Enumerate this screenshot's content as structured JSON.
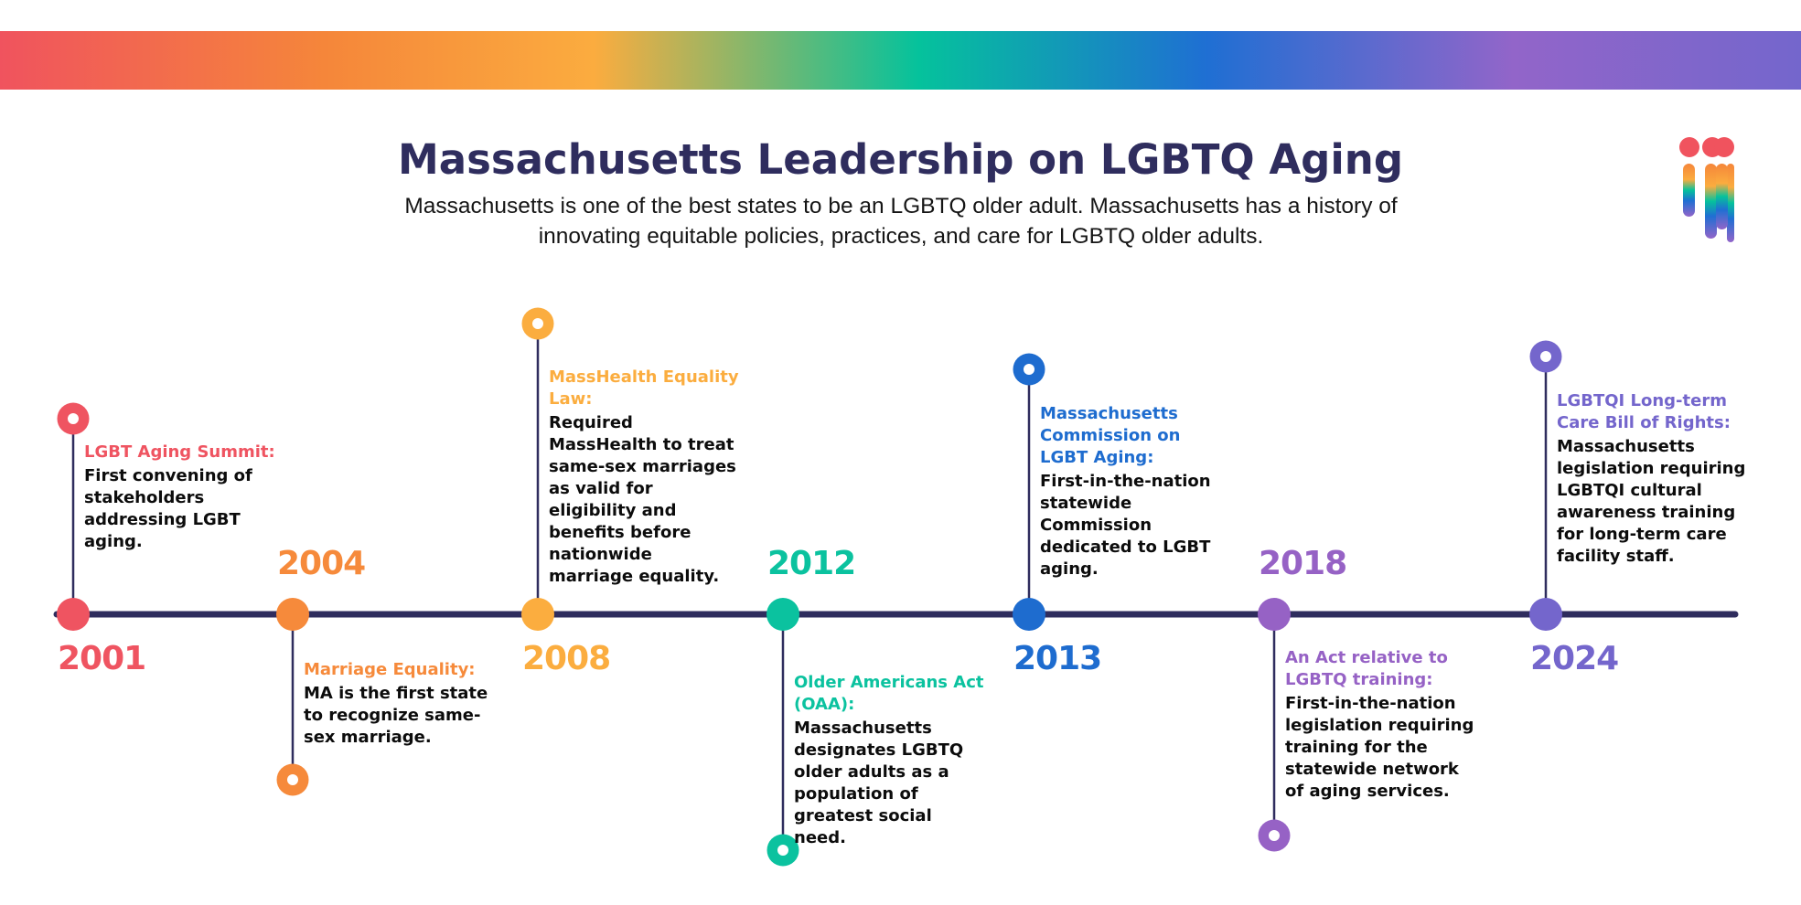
{
  "header": {
    "title": "Massachusetts Leadership on LGBTQ Aging",
    "subtitle": "Massachusetts is one of the best states to be an LGBTQ older adult. Massachusetts has a history of innovating equitable policies, practices, and care for LGBTQ older adults."
  },
  "colors": {
    "navy": "#2f2d5e",
    "red": "#ef5461",
    "orange": "#f68a3b",
    "yellow": "#fbad3f",
    "teal": "#0bc29f",
    "blue": "#1e6ccf",
    "purple": "#9662c5",
    "violet": "#7466cc"
  },
  "timeline": [
    {
      "year": "2001",
      "title": "LGBT Aging Summit:",
      "desc": "First convening of stakeholders addressing LGBT aging.",
      "color": "#ef5461"
    },
    {
      "year": "2004",
      "title": "Marriage Equality:",
      "desc": "MA is the first state to recognize same-sex marriage.",
      "color": "#f68a3b"
    },
    {
      "year": "2008",
      "title": "MassHealth Equality Law:",
      "desc": "Required MassHealth to treat same-sex marriages as valid for eligibility and benefits before nationwide marriage equality.",
      "color": "#fbad3f"
    },
    {
      "year": "2012",
      "title": "Older Americans Act (OAA):",
      "desc": "Massachusetts designates LGBTQ older adults as a population of greatest social need.",
      "color": "#0bc29f"
    },
    {
      "year": "2013",
      "title": "Massachusetts Commission on LGBT Aging:",
      "desc": "First-in-the-nation statewide Commission dedicated to LGBT aging.",
      "color": "#1e6ccf"
    },
    {
      "year": "2018",
      "title": "An Act relative to LGBTQ training:",
      "desc": "First-in-the-nation legislation requiring training for the statewide network of aging services.",
      "color": "#9662c5"
    },
    {
      "year": "2024",
      "title": "LGBTQI Long-term Care Bill of Rights:",
      "desc": "Massachusetts legislation requiring LGBTQI cultural awareness training for long-term care facility staff.",
      "color": "#7466cc"
    }
  ]
}
